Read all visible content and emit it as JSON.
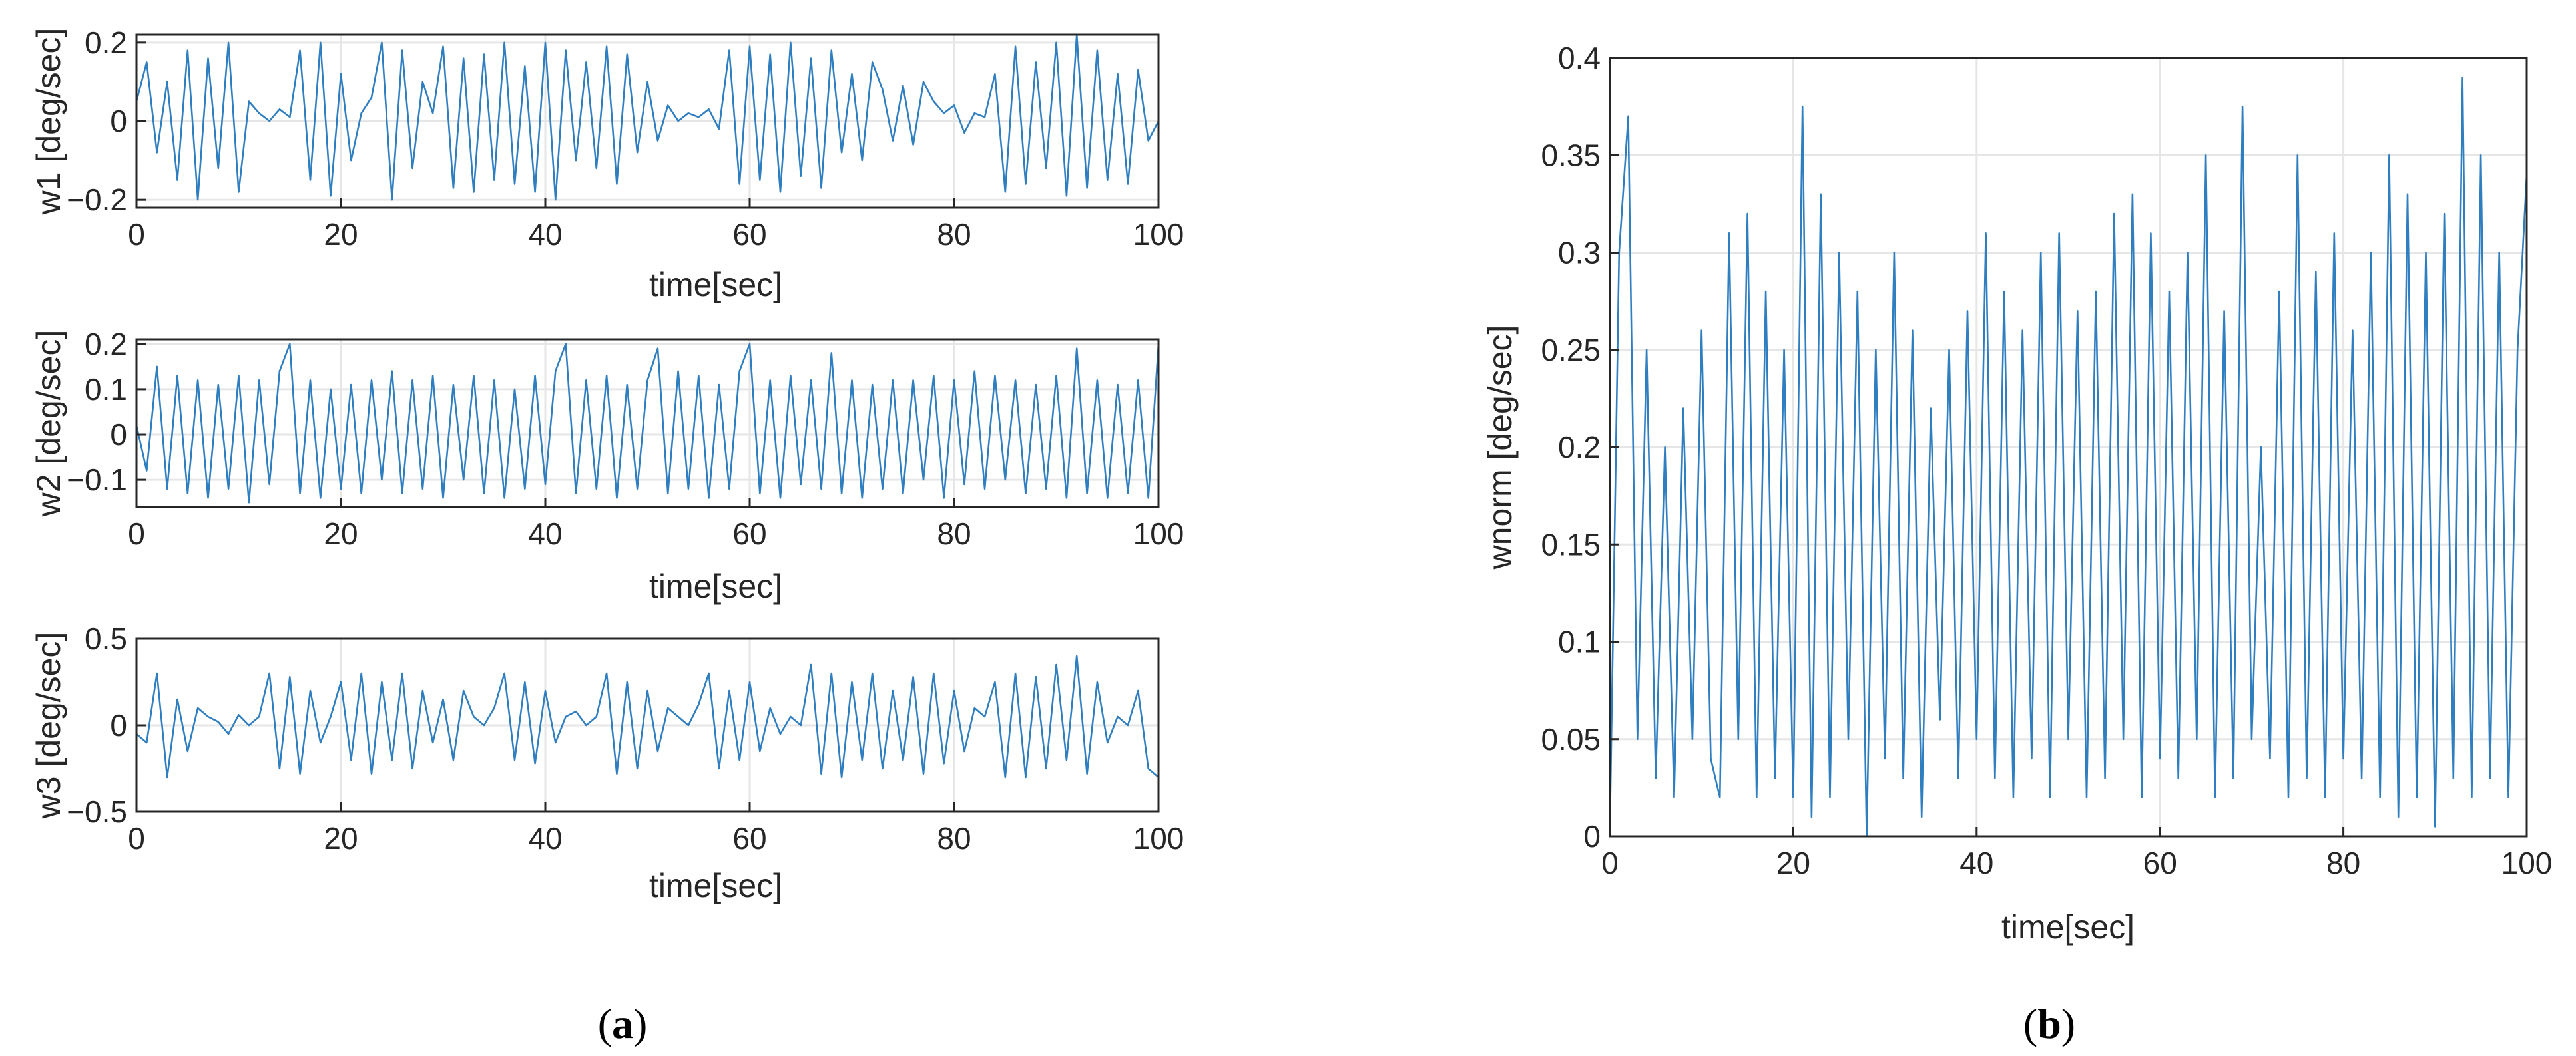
{
  "figure_labels": {
    "a": {
      "open": "(",
      "letter": "a",
      "close": ")"
    },
    "b": {
      "open": "(",
      "letter": "b",
      "close": ")"
    }
  },
  "style": {
    "line_color": "#2f7ec0",
    "axis_color": "#262626",
    "grid_color": "#e6e6e6"
  },
  "chart_data": [
    {
      "type": "line",
      "panel": "a",
      "xlabel": "time[sec]",
      "ylabel": "w1 [deg/sec]",
      "xlim": [
        0,
        100
      ],
      "ylim": [
        -0.22,
        0.22
      ],
      "xticks": [
        0,
        20,
        40,
        60,
        80,
        100
      ],
      "yticks": [
        -0.2,
        0,
        0.2
      ],
      "ytick_labels": [
        "−0.2",
        "0",
        "0.2"
      ],
      "grid": true,
      "series": [
        {
          "x": [
            0,
            1,
            2,
            3,
            4,
            5,
            6,
            7,
            8,
            9,
            10,
            11,
            12,
            13,
            14,
            15,
            16,
            17,
            18,
            19,
            20,
            21,
            22,
            23,
            24,
            25,
            26,
            27,
            28,
            29,
            30,
            31,
            32,
            33,
            34,
            35,
            36,
            37,
            38,
            39,
            40,
            41,
            42,
            43,
            44,
            45,
            46,
            47,
            48,
            49,
            50,
            51,
            52,
            53,
            54,
            55,
            56,
            57,
            58,
            59,
            60,
            61,
            62,
            63,
            64,
            65,
            66,
            67,
            68,
            69,
            70,
            71,
            72,
            73,
            74,
            75,
            76,
            77,
            78,
            79,
            80,
            81,
            82,
            83,
            84,
            85,
            86,
            87,
            88,
            89,
            90,
            91,
            92,
            93,
            94,
            95,
            96,
            97,
            98,
            99,
            100
          ],
          "y": [
            0.05,
            0.15,
            -0.08,
            0.1,
            -0.15,
            0.18,
            -0.2,
            0.16,
            -0.12,
            0.2,
            -0.18,
            0.05,
            0.02,
            0,
            0.03,
            0.01,
            0.18,
            -0.15,
            0.2,
            -0.19,
            0.12,
            -0.1,
            0.02,
            0.06,
            0.2,
            -0.2,
            0.18,
            -0.12,
            0.1,
            0.02,
            0.19,
            -0.17,
            0.16,
            -0.18,
            0.17,
            -0.15,
            0.2,
            -0.16,
            0.14,
            -0.18,
            0.2,
            -0.2,
            0.18,
            -0.1,
            0.15,
            -0.12,
            0.19,
            -0.16,
            0.17,
            -0.08,
            0.1,
            -0.05,
            0.04,
            0,
            0.02,
            0.01,
            0.03,
            -0.02,
            0.18,
            -0.16,
            0.19,
            -0.15,
            0.17,
            -0.18,
            0.2,
            -0.14,
            0.16,
            -0.17,
            0.18,
            -0.08,
            0.12,
            -0.1,
            0.15,
            0.08,
            -0.05,
            0.09,
            -0.06,
            0.1,
            0.05,
            0.02,
            0.04,
            -0.03,
            0.02,
            0.01,
            0.12,
            -0.18,
            0.19,
            -0.16,
            0.15,
            -0.12,
            0.2,
            -0.19,
            0.22,
            -0.17,
            0.18,
            -0.15,
            0.12,
            -0.16,
            0.13,
            -0.05,
            0.0
          ]
        }
      ]
    },
    {
      "type": "line",
      "panel": "a",
      "xlabel": "time[sec]",
      "ylabel": "w2 [deg/sec]",
      "xlim": [
        0,
        100
      ],
      "ylim": [
        -0.16,
        0.21
      ],
      "xticks": [
        0,
        20,
        40,
        60,
        80,
        100
      ],
      "yticks": [
        -0.1,
        0,
        0.1,
        0.2
      ],
      "ytick_labels": [
        "−0.1",
        "0",
        "0.1",
        "0.2"
      ],
      "grid": true,
      "series": [
        {
          "x": [
            0,
            1,
            2,
            3,
            4,
            5,
            6,
            7,
            8,
            9,
            10,
            11,
            12,
            13,
            14,
            15,
            16,
            17,
            18,
            19,
            20,
            21,
            22,
            23,
            24,
            25,
            26,
            27,
            28,
            29,
            30,
            31,
            32,
            33,
            34,
            35,
            36,
            37,
            38,
            39,
            40,
            41,
            42,
            43,
            44,
            45,
            46,
            47,
            48,
            49,
            50,
            51,
            52,
            53,
            54,
            55,
            56,
            57,
            58,
            59,
            60,
            61,
            62,
            63,
            64,
            65,
            66,
            67,
            68,
            69,
            70,
            71,
            72,
            73,
            74,
            75,
            76,
            77,
            78,
            79,
            80,
            81,
            82,
            83,
            84,
            85,
            86,
            87,
            88,
            89,
            90,
            91,
            92,
            93,
            94,
            95,
            96,
            97,
            98,
            99,
            100
          ],
          "y": [
            0.02,
            -0.08,
            0.15,
            -0.12,
            0.13,
            -0.13,
            0.12,
            -0.14,
            0.11,
            -0.12,
            0.13,
            -0.15,
            0.12,
            -0.11,
            0.14,
            0.2,
            -0.13,
            0.12,
            -0.14,
            0.1,
            -0.12,
            0.11,
            -0.13,
            0.12,
            -0.1,
            0.14,
            -0.13,
            0.12,
            -0.12,
            0.13,
            -0.14,
            0.11,
            -0.1,
            0.13,
            -0.13,
            0.12,
            -0.14,
            0.1,
            -0.12,
            0.13,
            -0.11,
            0.14,
            0.2,
            -0.13,
            0.12,
            -0.12,
            0.13,
            -0.14,
            0.11,
            -0.12,
            0.12,
            0.19,
            -0.13,
            0.14,
            -0.12,
            0.13,
            -0.14,
            0.11,
            -0.12,
            0.14,
            0.2,
            -0.13,
            0.12,
            -0.14,
            0.13,
            -0.11,
            0.12,
            -0.12,
            0.18,
            -0.13,
            0.12,
            -0.14,
            0.11,
            -0.12,
            0.12,
            -0.13,
            0.12,
            -0.1,
            0.13,
            -0.14,
            0.12,
            -0.11,
            0.14,
            -0.12,
            0.13,
            -0.1,
            0.12,
            -0.13,
            0.11,
            -0.12,
            0.13,
            -0.14,
            0.19,
            -0.13,
            0.12,
            -0.14,
            0.11,
            -0.13,
            0.12,
            -0.14,
            0.2
          ]
        }
      ]
    },
    {
      "type": "line",
      "panel": "a",
      "xlabel": "time[sec]",
      "ylabel": "w3 [deg/sec]",
      "xlim": [
        0,
        100
      ],
      "ylim": [
        -0.5,
        0.5
      ],
      "xticks": [
        0,
        20,
        40,
        60,
        80,
        100
      ],
      "yticks": [
        -0.5,
        0,
        0.5
      ],
      "ytick_labels": [
        "−0.5",
        "0",
        "0.5"
      ],
      "grid": true,
      "series": [
        {
          "x": [
            0,
            1,
            2,
            3,
            4,
            5,
            6,
            7,
            8,
            9,
            10,
            11,
            12,
            13,
            14,
            15,
            16,
            17,
            18,
            19,
            20,
            21,
            22,
            23,
            24,
            25,
            26,
            27,
            28,
            29,
            30,
            31,
            32,
            33,
            34,
            35,
            36,
            37,
            38,
            39,
            40,
            41,
            42,
            43,
            44,
            45,
            46,
            47,
            48,
            49,
            50,
            51,
            52,
            53,
            54,
            55,
            56,
            57,
            58,
            59,
            60,
            61,
            62,
            63,
            64,
            65,
            66,
            67,
            68,
            69,
            70,
            71,
            72,
            73,
            74,
            75,
            76,
            77,
            78,
            79,
            80,
            81,
            82,
            83,
            84,
            85,
            86,
            87,
            88,
            89,
            90,
            91,
            92,
            93,
            94,
            95,
            96,
            97,
            98,
            99,
            100
          ],
          "y": [
            -0.05,
            -0.1,
            0.3,
            -0.3,
            0.15,
            -0.15,
            0.1,
            0.05,
            0.02,
            -0.05,
            0.06,
            0.0,
            0.05,
            0.3,
            -0.25,
            0.28,
            -0.28,
            0.2,
            -0.1,
            0.05,
            0.25,
            -0.2,
            0.3,
            -0.28,
            0.25,
            -0.2,
            0.3,
            -0.25,
            0.2,
            -0.1,
            0.15,
            -0.2,
            0.2,
            0.05,
            0.0,
            0.1,
            0.3,
            -0.2,
            0.25,
            -0.22,
            0.2,
            -0.1,
            0.05,
            0.08,
            0.0,
            0.05,
            0.3,
            -0.28,
            0.25,
            -0.25,
            0.2,
            -0.15,
            0.1,
            0.05,
            0.0,
            0.12,
            0.3,
            -0.25,
            0.2,
            -0.2,
            0.25,
            -0.15,
            0.1,
            -0.05,
            0.05,
            0.0,
            0.35,
            -0.28,
            0.3,
            -0.3,
            0.25,
            -0.2,
            0.3,
            -0.25,
            0.2,
            -0.2,
            0.28,
            -0.28,
            0.3,
            -0.22,
            0.2,
            -0.15,
            0.1,
            0.05,
            0.25,
            -0.3,
            0.3,
            -0.3,
            0.28,
            -0.25,
            0.35,
            -0.2,
            0.4,
            -0.28,
            0.25,
            -0.1,
            0.05,
            0.0,
            0.2,
            -0.25,
            -0.3
          ]
        }
      ]
    },
    {
      "type": "line",
      "panel": "b",
      "xlabel": "time[sec]",
      "ylabel": "wnorm [deg/sec]",
      "xlim": [
        0,
        100
      ],
      "ylim": [
        0,
        0.4
      ],
      "xticks": [
        0,
        20,
        40,
        60,
        80,
        100
      ],
      "yticks": [
        0,
        0.05,
        0.1,
        0.15,
        0.2,
        0.25,
        0.3,
        0.35,
        0.4
      ],
      "ytick_labels": [
        "0",
        "0.05",
        "0.1",
        "0.15",
        "0.2",
        "0.25",
        "0.3",
        "0.35",
        "0.4"
      ],
      "grid": true,
      "series": [
        {
          "x": [
            0,
            1,
            2,
            3,
            4,
            5,
            6,
            7,
            8,
            9,
            10,
            11,
            12,
            13,
            14,
            15,
            16,
            17,
            18,
            19,
            20,
            21,
            22,
            23,
            24,
            25,
            26,
            27,
            28,
            29,
            30,
            31,
            32,
            33,
            34,
            35,
            36,
            37,
            38,
            39,
            40,
            41,
            42,
            43,
            44,
            45,
            46,
            47,
            48,
            49,
            50,
            51,
            52,
            53,
            54,
            55,
            56,
            57,
            58,
            59,
            60,
            61,
            62,
            63,
            64,
            65,
            66,
            67,
            68,
            69,
            70,
            71,
            72,
            73,
            74,
            75,
            76,
            77,
            78,
            79,
            80,
            81,
            82,
            83,
            84,
            85,
            86,
            87,
            88,
            89,
            90,
            91,
            92,
            93,
            94,
            95,
            96,
            97,
            98,
            99,
            100
          ],
          "y": [
            0.005,
            0.3,
            0.37,
            0.05,
            0.25,
            0.03,
            0.2,
            0.02,
            0.22,
            0.05,
            0.26,
            0.04,
            0.02,
            0.31,
            0.05,
            0.32,
            0.02,
            0.28,
            0.03,
            0.25,
            0.02,
            0.375,
            0.01,
            0.33,
            0.02,
            0.3,
            0.05,
            0.28,
            0.0,
            0.25,
            0.04,
            0.3,
            0.03,
            0.26,
            0.01,
            0.22,
            0.06,
            0.25,
            0.03,
            0.27,
            0.05,
            0.31,
            0.03,
            0.28,
            0.02,
            0.26,
            0.04,
            0.3,
            0.02,
            0.31,
            0.05,
            0.27,
            0.02,
            0.28,
            0.03,
            0.32,
            0.05,
            0.33,
            0.02,
            0.31,
            0.04,
            0.28,
            0.03,
            0.3,
            0.05,
            0.35,
            0.02,
            0.27,
            0.03,
            0.375,
            0.05,
            0.2,
            0.04,
            0.28,
            0.02,
            0.35,
            0.03,
            0.29,
            0.02,
            0.31,
            0.04,
            0.26,
            0.03,
            0.3,
            0.02,
            0.35,
            0.01,
            0.33,
            0.02,
            0.3,
            0.005,
            0.32,
            0.03,
            0.39,
            0.02,
            0.35,
            0.03,
            0.3,
            0.02,
            0.25,
            0.34
          ]
        }
      ]
    }
  ]
}
